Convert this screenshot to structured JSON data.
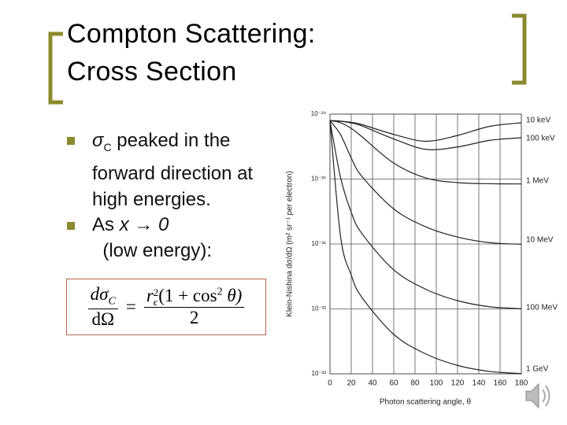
{
  "slide": {
    "title": [
      "Compton Scattering:",
      "Cross Section"
    ],
    "bullets": [
      {
        "symbol": "σ",
        "sub": "C",
        "text": " peaked in the forward direction at high energies."
      },
      {
        "text": "As ",
        "italic": "x → 0",
        "rest": "  (low energy):"
      }
    ],
    "equation": {
      "num_lhs": "dσ",
      "num_lhs_sub": "C",
      "den_lhs": "dΩ",
      "equals": "=",
      "r": "r",
      "r_sup": "2",
      "r_sub": "ϵ",
      "num_rhs": "(1 + cos",
      "cos_sup": "2",
      "num_rhs_end": " θ)",
      "den_rhs": "2"
    }
  },
  "chart_data": {
    "type": "line",
    "x_label": "Photon scattering angle, θ",
    "y_label": "Klein-Nishina dσ/dΩ (m² sr⁻¹ per electron)",
    "x": [
      0,
      10,
      20,
      30,
      60,
      90,
      120,
      150,
      180
    ],
    "series": [
      {
        "name": "10 keV",
        "color": "#222222",
        "values": [
          7.94e-30,
          7.82e-30,
          7.46e-30,
          6.91e-30,
          4.87e-30,
          3.82e-30,
          4.69e-30,
          6.47e-30,
          7.36e-30
        ]
      },
      {
        "name": "100 keV",
        "color": "#222222",
        "values": [
          7.94e-30,
          7.77e-30,
          7.3e-30,
          6.6e-30,
          4.15e-30,
          2.87e-30,
          3.12e-30,
          3.94e-30,
          4.33e-30
        ]
      },
      {
        "name": "1 MeV",
        "color": "#222222",
        "values": [
          7.94e-30,
          7.38e-30,
          6.02e-30,
          4.5e-30,
          1.76e-30,
          1.04e-30,
          8.82e-31,
          8.47e-31,
          8.41e-31
        ]
      },
      {
        "name": "10 MeV",
        "color": "#222222",
        "values": [
          7.94e-30,
          4.81e-30,
          2.11e-30,
          1.1e-30,
          3.46e-31,
          1.84e-31,
          1.28e-31,
          1.05e-31,
          9.9e-32
        ]
      },
      {
        "name": "100 MeV",
        "color": "#222222",
        "values": [
          7.94e-30,
          1.05e-30,
          3.09e-31,
          1.45e-31,
          3.99e-32,
          2.01e-32,
          1.34e-32,
          1.08e-32,
          1.01e-32
        ]
      },
      {
        "name": "1 GeV",
        "color": "#222222",
        "values": [
          7.94e-30,
          1.29e-31,
          3.33e-32,
          1.51e-32,
          4.05e-33,
          2.03e-33,
          1.35e-33,
          1.09e-33,
          1.01e-33
        ]
      }
    ],
    "xlim": [
      0,
      180
    ],
    "xticks": [
      0,
      20,
      40,
      60,
      80,
      100,
      120,
      140,
      160,
      180
    ],
    "ylim": [
      1e-33,
      1e-29
    ],
    "log_y": true,
    "yticks": [
      {
        "value": 1e-29,
        "label": "10⁻²⁹"
      },
      {
        "value": 1e-30,
        "label": "10⁻³⁰"
      },
      {
        "value": 1e-31,
        "label": "10⁻³¹"
      },
      {
        "value": 1e-32,
        "label": "10⁻³²"
      },
      {
        "value": 1e-33,
        "label": "10⁻³³"
      }
    ],
    "grid": true
  }
}
